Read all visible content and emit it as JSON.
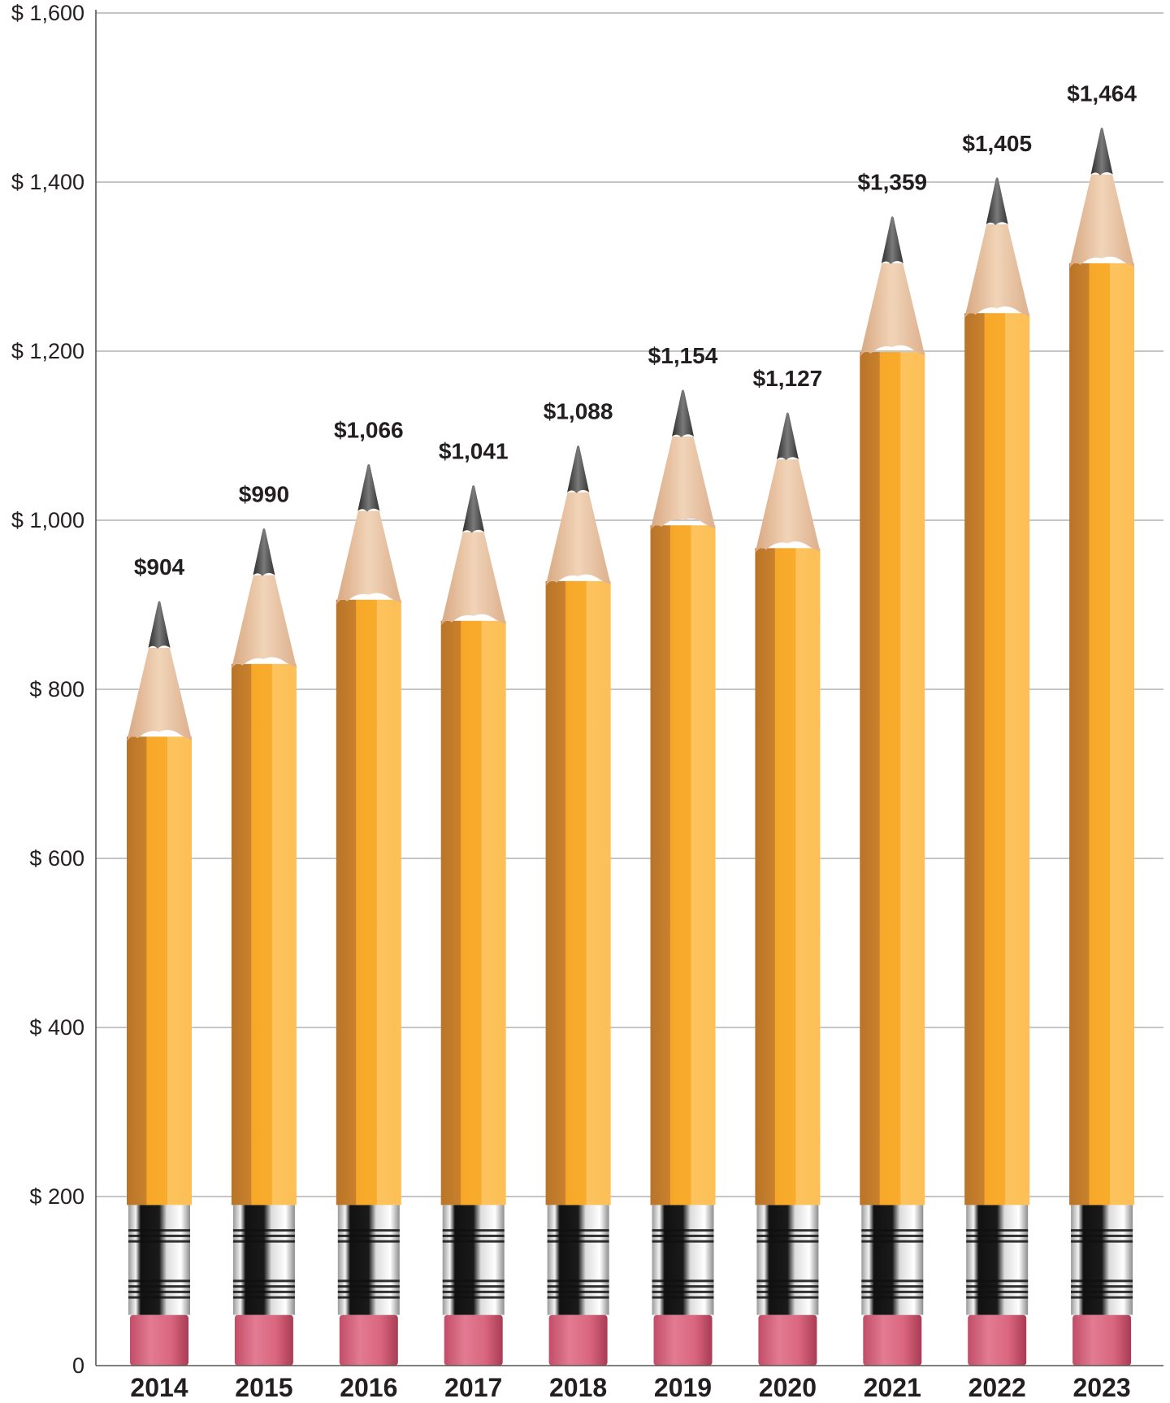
{
  "chart_data": {
    "type": "bar",
    "title": "",
    "xlabel": "",
    "ylabel": "",
    "categories": [
      "2014",
      "2015",
      "2016",
      "2017",
      "2018",
      "2019",
      "2020",
      "2021",
      "2022",
      "2023"
    ],
    "values": [
      904,
      990,
      1066,
      1041,
      1088,
      1154,
      1127,
      1359,
      1405,
      1464
    ],
    "value_labels": [
      "$904",
      "$990",
      "$1,066",
      "$1,041",
      "$1,088",
      "$1,154",
      "$1,127",
      "$1,359",
      "$1,405",
      "$1,464"
    ],
    "ylim": [
      0,
      1600
    ],
    "y_ticks": [
      0,
      200,
      400,
      600,
      800,
      1000,
      1200,
      1400,
      1600
    ],
    "y_tick_labels": [
      "0",
      "$ 200",
      "$ 400",
      "$ 600",
      "$ 800",
      "$ 1,000",
      "$ 1,200",
      "$ 1,400",
      "$ 1,600"
    ],
    "grid": true,
    "bar_style": "pencil",
    "colors": {
      "grid": "#b3b3b3",
      "axis": "#555555",
      "pencil_body": "#f7a829",
      "pencil_body_dark": "#c07a2a",
      "pencil_body_light": "#fdc35e",
      "wood": "#e8c3a0",
      "lead": "#4a4a4a",
      "ferrule": "#cfcfcf",
      "ferrule_band": "#1a1a1a",
      "eraser": "#d9667e",
      "text": "#231f20"
    }
  }
}
